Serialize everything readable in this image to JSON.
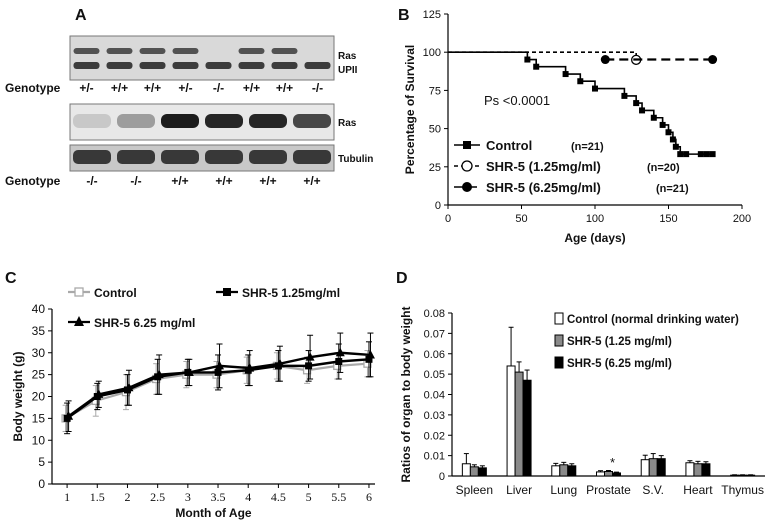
{
  "panels": {
    "a_label": "A",
    "b_label": "B",
    "c_label": "C",
    "d_label": "D"
  },
  "blot": {
    "top_genotype_label": "Genotype",
    "top_genotypes": [
      "+/-",
      "+/+",
      "+/+",
      "+/-",
      "-/-",
      "+/+",
      "+/+",
      "-/-"
    ],
    "top_band_labels": [
      "Ras",
      "UPII"
    ],
    "mid_band_label": "Ras",
    "tubulin_label": "Tubulin",
    "bottom_genotype_label": "Genotype",
    "bottom_genotypes": [
      "-/-",
      "-/-",
      "+/+",
      "+/+",
      "+/+",
      "+/+"
    ],
    "ras_intensity": [
      0.15,
      0.35,
      0.95,
      0.9,
      0.9,
      0.75
    ]
  },
  "chart_data": [
    {
      "id": "survival",
      "type": "line",
      "xlabel": "Age (days)",
      "ylabel": "Percentage of Survival",
      "xlim": [
        0,
        200
      ],
      "ylim": [
        0,
        125
      ],
      "xticks": [
        0,
        50,
        100,
        150,
        200
      ],
      "yticks": [
        0,
        25,
        50,
        75,
        100,
        125
      ],
      "annotation": "Ps <0.0001",
      "series": [
        {
          "name": "Control",
          "n": "(n=21)",
          "color": "#000000",
          "marker": "square",
          "dash": "",
          "x": [
            0,
            54,
            54,
            60,
            60,
            80,
            80,
            90,
            90,
            100,
            100,
            120,
            120,
            128,
            128,
            132,
            132,
            140,
            140,
            146,
            146,
            150,
            150,
            153,
            153,
            155,
            155,
            158,
            158,
            162,
            162,
            172,
            172,
            176,
            176,
            180
          ],
          "y": [
            100,
            100,
            95.2,
            95.2,
            90.5,
            90.5,
            85.7,
            85.7,
            81,
            81,
            76.2,
            76.2,
            71.4,
            71.4,
            66.7,
            66.7,
            61.9,
            61.9,
            57.1,
            57.1,
            52.4,
            52.4,
            47.6,
            47.6,
            42.9,
            42.9,
            38.1,
            38.1,
            33.3,
            33.3,
            33.3,
            33.3,
            33.3,
            33.3,
            33.3,
            33.3
          ],
          "markers_x": [
            54,
            60,
            80,
            90,
            100,
            120,
            128,
            132,
            140,
            146,
            150,
            153,
            155,
            158,
            162,
            172,
            176,
            180
          ],
          "markers_y": [
            95.2,
            90.5,
            85.7,
            81,
            76.2,
            71.4,
            66.7,
            61.9,
            57.1,
            52.4,
            47.6,
            42.9,
            38.1,
            33.3,
            33.3,
            33.3,
            33.3,
            33.3
          ]
        },
        {
          "name": "SHR-5 (1.25mg/ml)",
          "n": "(n=20)",
          "color": "#000000",
          "marker": "circle-open",
          "dash": "4,3",
          "x": [
            0,
            128,
            128
          ],
          "y": [
            100,
            100,
            95
          ],
          "markers_x": [
            128
          ],
          "markers_y": [
            95
          ]
        },
        {
          "name": "SHR-5 (6.25mg/ml)",
          "n": "(n=21)",
          "color": "#000000",
          "marker": "circle",
          "dash": "9,5",
          "x": [
            107,
            180
          ],
          "y": [
            95.2,
            95.2
          ],
          "markers_x": [
            107,
            180
          ],
          "markers_y": [
            95.2,
            95.2
          ]
        }
      ]
    },
    {
      "id": "bodyweight",
      "type": "line",
      "xlabel": "Month of Age",
      "ylabel": "Body weight (g)",
      "xlim": [
        0.75,
        6.1
      ],
      "ylim": [
        0,
        40
      ],
      "xticks": [
        1,
        1.5,
        2,
        2.5,
        3,
        3.5,
        4,
        4.5,
        5,
        5.5,
        6
      ],
      "xticklabels": [
        "1",
        "1.5",
        "2",
        "2.5",
        "3",
        "3.5",
        "4",
        "4.5",
        "5",
        "5.5",
        "6"
      ],
      "yticks": [
        0,
        5,
        10,
        15,
        20,
        25,
        30,
        35,
        40
      ],
      "x": [
        1,
        1.5,
        2,
        2.5,
        3,
        3.5,
        4,
        4.5,
        5,
        5.5,
        6
      ],
      "series": [
        {
          "name": "Control",
          "color": "#a9a9a9",
          "marker": "square-open",
          "values": [
            15,
            19,
            21,
            24,
            25,
            25,
            26,
            27,
            26,
            27,
            27.5
          ],
          "errors": [
            3,
            3.5,
            4,
            3.5,
            3,
            3,
            3,
            3,
            3,
            3,
            3
          ]
        },
        {
          "name": "SHR-5 1.25mg/ml",
          "color": "#000000",
          "marker": "square",
          "values": [
            15,
            20,
            21.5,
            24.5,
            25.5,
            25.5,
            26,
            27,
            27,
            28,
            28.5
          ],
          "errors": [
            3.5,
            3,
            3.5,
            4,
            3,
            4,
            3.5,
            3.5,
            3.5,
            4,
            4
          ]
        },
        {
          "name": "SHR-5 6.25 mg/ml",
          "color": "#000000",
          "marker": "triangle",
          "values": [
            15.5,
            20.5,
            22,
            25,
            25.5,
            27,
            26.5,
            27.5,
            29,
            30,
            29.5
          ],
          "errors": [
            3.5,
            3,
            4,
            4.5,
            3,
            5,
            4,
            4,
            5,
            4.5,
            5
          ]
        }
      ]
    },
    {
      "id": "organ",
      "type": "bar",
      "xlabel": "",
      "ylabel": "Ratios of organ to body weight",
      "ylim": [
        0,
        0.08
      ],
      "yticks": [
        0,
        0.01,
        0.02,
        0.03,
        0.04,
        0.05,
        0.06,
        0.07,
        0.08
      ],
      "yticklabels": [
        "0",
        "0.01",
        "0.02",
        "0.03",
        "0.04",
        "0.05",
        "0.06",
        "0.07",
        "0.08"
      ],
      "categories": [
        "Spleen",
        "Liver",
        "Lung",
        "Prostate",
        "S.V.",
        "Heart",
        "Thymus"
      ],
      "annotation": "*",
      "annotation_category": "Prostate",
      "series": [
        {
          "name": "Control (normal drinking water)",
          "color": "#ffffff",
          "values": [
            0.006,
            0.054,
            0.005,
            0.002,
            0.008,
            0.0065,
            0.0004
          ],
          "errors": [
            0.005,
            0.019,
            0.0012,
            0.0006,
            0.0022,
            0.001,
            0.0002
          ]
        },
        {
          "name": "SHR-5 (1.25 mg/ml)",
          "color": "#8a8a8a",
          "values": [
            0.0045,
            0.051,
            0.0055,
            0.0022,
            0.0085,
            0.006,
            0.0004
          ],
          "errors": [
            0.001,
            0.005,
            0.0012,
            0.0005,
            0.0025,
            0.0012,
            0.0002
          ]
        },
        {
          "name": "SHR-5 (6.25 mg/ml)",
          "color": "#000000",
          "values": [
            0.004,
            0.047,
            0.005,
            0.0015,
            0.0085,
            0.006,
            0.0004
          ],
          "errors": [
            0.001,
            0.005,
            0.001,
            0.0004,
            0.0015,
            0.001,
            0.0002
          ]
        }
      ]
    }
  ]
}
